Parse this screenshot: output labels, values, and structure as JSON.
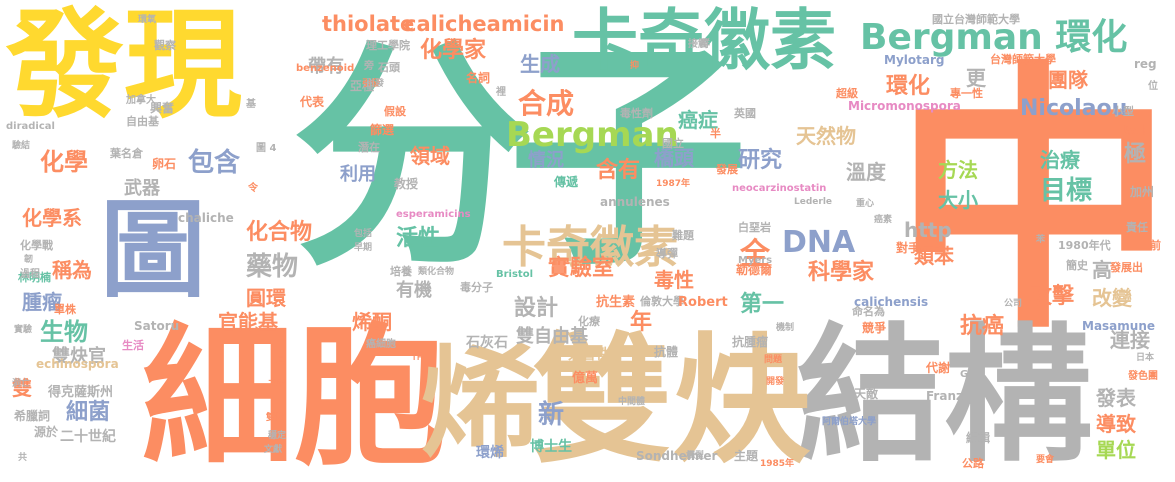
{
  "colors": {
    "teal": "#66c2a5",
    "orange": "#fc8d62",
    "blue": "#8da0cb",
    "pink": "#e78ac3",
    "green": "#a6d854",
    "yellow": "#ffd92f",
    "tan": "#e5c494",
    "gray": "#b3b3b3"
  },
  "words": [
    {
      "text": "分子",
      "color": "#66c2a5"
    },
    {
      "text": "中",
      "color": "#fc8d62"
    },
    {
      "text": "發現",
      "color": "#ffd92f"
    },
    {
      "text": "結構",
      "color": "#b3b3b3"
    },
    {
      "text": "細胞",
      "color": "#fc8d62"
    },
    {
      "text": "雙炔",
      "color": "#e5c494"
    },
    {
      "text": "烯",
      "color": "#e5c494"
    },
    {
      "text": "圖",
      "color": "#8da0cb"
    },
    {
      "text": "卡奇徽素",
      "color": "#66c2a5"
    },
    {
      "text": "卡奇徽素",
      "color": "#e5c494"
    },
    {
      "text": "Bergman 環化",
      "color": "#66c2a5"
    },
    {
      "text": "Bergman",
      "color": "#a6d854"
    },
    {
      "text": "thiolate",
      "color": "#fc8d62"
    },
    {
      "text": "calicheamicin",
      "color": "#fc8d62"
    },
    {
      "text": "化學家",
      "color": "#fc8d62"
    },
    {
      "text": "合成",
      "color": "#fc8d62"
    },
    {
      "text": "生成",
      "color": "#8da0cb"
    },
    {
      "text": "團隊",
      "color": "#fc8d62"
    },
    {
      "text": "環化",
      "color": "#fc8d62"
    },
    {
      "text": "更",
      "color": "#b3b3b3"
    },
    {
      "text": "Nicolaou",
      "color": "#8da0cb"
    },
    {
      "text": "天然物",
      "color": "#e5c494"
    },
    {
      "text": "癌症",
      "color": "#66c2a5"
    },
    {
      "text": "研究",
      "color": "#8da0cb"
    },
    {
      "text": "方法",
      "color": "#a6d854"
    },
    {
      "text": "治療",
      "color": "#66c2a5"
    },
    {
      "text": "目標",
      "color": "#66c2a5"
    },
    {
      "text": "大小",
      "color": "#66c2a5"
    },
    {
      "text": "溫度",
      "color": "#b3b3b3"
    },
    {
      "text": "極",
      "color": "#b3b3b3"
    },
    {
      "text": "DNA",
      "color": "#8da0cb"
    },
    {
      "text": "全",
      "color": "#fc8d62"
    },
    {
      "text": "科學家",
      "color": "#fc8d62"
    },
    {
      "text": "類苯",
      "color": "#fc8d62"
    },
    {
      "text": "攻擊",
      "color": "#fc8d62"
    },
    {
      "text": "改變",
      "color": "#e5c494"
    },
    {
      "text": "高",
      "color": "#b3b3b3"
    },
    {
      "text": "抗癌",
      "color": "#fc8d62"
    },
    {
      "text": "連接",
      "color": "#b3b3b3"
    },
    {
      "text": "發表",
      "color": "#b3b3b3"
    },
    {
      "text": "導致",
      "color": "#fc8d62"
    },
    {
      "text": "單位",
      "color": "#a6d854"
    },
    {
      "text": "http",
      "color": "#b3b3b3"
    },
    {
      "text": "第一",
      "color": "#66c2a5"
    },
    {
      "text": "實驗室",
      "color": "#fc8d62"
    },
    {
      "text": "毒性",
      "color": "#fc8d62"
    },
    {
      "text": "含有",
      "color": "#fc8d62"
    },
    {
      "text": "橋頭",
      "color": "#8da0cb"
    },
    {
      "text": "情況",
      "color": "#8da0cb"
    },
    {
      "text": "包含",
      "color": "#8da0cb"
    },
    {
      "text": "化學",
      "color": "#fc8d62"
    },
    {
      "text": "武器",
      "color": "#b3b3b3"
    },
    {
      "text": "化學系",
      "color": "#fc8d62"
    },
    {
      "text": "稱為",
      "color": "#fc8d62"
    },
    {
      "text": "腫瘤",
      "color": "#8da0cb"
    },
    {
      "text": "生物",
      "color": "#66c2a5"
    },
    {
      "text": "化合物",
      "color": "#fc8d62"
    },
    {
      "text": "藥物",
      "color": "#b3b3b3"
    },
    {
      "text": "圓環",
      "color": "#fc8d62"
    },
    {
      "text": "官能基",
      "color": "#fc8d62"
    },
    {
      "text": "活性",
      "color": "#66c2a5"
    },
    {
      "text": "有機",
      "color": "#b3b3b3"
    },
    {
      "text": "烯酮",
      "color": "#fc8d62"
    },
    {
      "text": "設計",
      "color": "#b3b3b3"
    },
    {
      "text": "雙自由基",
      "color": "#b3b3b3"
    },
    {
      "text": "新",
      "color": "#8da0cb"
    },
    {
      "text": "年",
      "color": "#fc8d62"
    },
    {
      "text": "帶有",
      "color": "#b3b3b3"
    },
    {
      "text": "領域",
      "color": "#fc8d62"
    },
    {
      "text": "利用",
      "color": "#8da0cb"
    },
    {
      "text": "雙炔官",
      "color": "#b3b3b3"
    },
    {
      "text": "雙",
      "color": "#fc8d62"
    },
    {
      "text": "細菌",
      "color": "#8da0cb"
    },
    {
      "text": "二十世紀",
      "color": "#b3b3b3"
    },
    {
      "text": "得克薩斯州",
      "color": "#b3b3b3"
    },
    {
      "text": "希臘詞",
      "color": "#b3b3b3"
    },
    {
      "text": "源於",
      "color": "#b3b3b3"
    },
    {
      "text": "博士生",
      "color": "#66c2a5"
    },
    {
      "text": "Sondheimer",
      "color": "#b3b3b3"
    },
    {
      "text": "主題",
      "color": "#b3b3b3"
    },
    {
      "text": "環烯",
      "color": "#8da0cb"
    },
    {
      "text": "石灰石",
      "color": "#b3b3b3"
    },
    {
      "text": "芳香性",
      "color": "#e5c494"
    },
    {
      "text": "億萬",
      "color": "#fc8d62"
    },
    {
      "text": "抗生素",
      "color": "#fc8d62"
    },
    {
      "text": "倫敦大學",
      "color": "#b3b3b3"
    },
    {
      "text": "Robert",
      "color": "#fc8d62"
    },
    {
      "text": "Micromonospora",
      "color": "#e78ac3"
    },
    {
      "text": "Mylotarg",
      "color": "#8da0cb"
    },
    {
      "text": "annulenes",
      "color": "#b3b3b3"
    },
    {
      "text": "chaliche",
      "color": "#b3b3b3"
    },
    {
      "text": "calichensis",
      "color": "#8da0cb"
    },
    {
      "text": "esperamicins",
      "color": "#e78ac3"
    },
    {
      "text": "neocarzinostatin",
      "color": "#e78ac3"
    },
    {
      "text": "echinospora",
      "color": "#e5c494"
    },
    {
      "text": "Satoru",
      "color": "#b3b3b3"
    },
    {
      "text": "Masamune",
      "color": "#8da0cb"
    },
    {
      "text": "Franz",
      "color": "#b3b3b3"
    },
    {
      "text": "國立台灣師範大學",
      "color": "#b3b3b3"
    },
    {
      "text": "台灣師範大學",
      "color": "#fc8d62"
    },
    {
      "text": "理工學院",
      "color": "#b3b3b3"
    },
    {
      "text": "林明楠",
      "color": "#66c2a5"
    },
    {
      "text": "自由基",
      "color": "#b3b3b3"
    },
    {
      "text": "毒性劑",
      "color": "#b3b3b3"
    },
    {
      "text": "英國",
      "color": "#b3b3b3"
    },
    {
      "text": "超級",
      "color": "#fc8d62"
    },
    {
      "text": "小型",
      "color": "#b3b3b3"
    },
    {
      "text": "吸引",
      "color": "#fc8d62"
    },
    {
      "text": "專一性",
      "color": "#fc8d62"
    },
    {
      "text": "1987年",
      "color": "#fc8d62"
    },
    {
      "text": "1980年代",
      "color": "#b3b3b3"
    },
    {
      "text": "1985年",
      "color": "#fc8d62"
    },
    {
      "text": "簡史",
      "color": "#b3b3b3"
    },
    {
      "text": "發展出",
      "color": "#fc8d62"
    },
    {
      "text": "勒德爾",
      "color": "#fc8d62"
    },
    {
      "text": "對手",
      "color": "#fc8d62"
    },
    {
      "text": "代謝",
      "color": "#fc8d62"
    },
    {
      "text": "天敵",
      "color": "#b3b3b3"
    },
    {
      "text": "競爭",
      "color": "#fc8d62"
    },
    {
      "text": "命名為",
      "color": "#b3b3b3"
    },
    {
      "text": "抗腫瘤",
      "color": "#b3b3b3"
    },
    {
      "text": "抗體",
      "color": "#b3b3b3"
    },
    {
      "text": "化療",
      "color": "#b3b3b3"
    },
    {
      "text": "導彈",
      "color": "#b3b3b3"
    },
    {
      "text": "難題",
      "color": "#b3b3b3"
    },
    {
      "text": "毒分子",
      "color": "#b3b3b3"
    },
    {
      "text": "培養",
      "color": "#b3b3b3"
    },
    {
      "text": "類化合物",
      "color": "#b3b3b3"
    },
    {
      "text": "Bristol",
      "color": "#66c2a5"
    },
    {
      "text": "Myers",
      "color": "#b3b3b3"
    },
    {
      "text": "Lederle",
      "color": "#b3b3b3"
    },
    {
      "text": "白堊岩",
      "color": "#b3b3b3"
    },
    {
      "text": "發展",
      "color": "#fc8d62"
    },
    {
      "text": "傳遞",
      "color": "#66c2a5"
    },
    {
      "text": "國立",
      "color": "#b3b3b3"
    },
    {
      "text": "教授",
      "color": "#b3b3b3"
    },
    {
      "text": "潛在",
      "color": "#b3b3b3"
    },
    {
      "text": "篩選",
      "color": "#fc8d62"
    },
    {
      "text": "假設",
      "color": "#fc8d62"
    },
    {
      "text": "亞種",
      "color": "#b3b3b3"
    },
    {
      "text": "石頭",
      "color": "#b3b3b3"
    },
    {
      "text": "代表",
      "color": "#fc8d62"
    },
    {
      "text": "興奮",
      "color": "#b3b3b3"
    },
    {
      "text": "名詞",
      "color": "#fc8d62"
    },
    {
      "text": "葉名倉",
      "color": "#b3b3b3"
    },
    {
      "text": "卵石",
      "color": "#fc8d62"
    },
    {
      "text": "加拿大",
      "color": "#b3b3b3"
    },
    {
      "text": "觀察",
      "color": "#b3b3b3"
    },
    {
      "text": "diradical",
      "color": "#b3b3b3"
    },
    {
      "text": "benzenoid",
      "color": "#fc8d62"
    },
    {
      "text": "化學戰",
      "color": "#b3b3b3"
    },
    {
      "text": "單株",
      "color": "#fc8d62"
    },
    {
      "text": "癌細胞",
      "color": "#b3b3b3"
    },
    {
      "text": "公路",
      "color": "#fc8d62"
    },
    {
      "text": "阿爾伯塔大學",
      "color": "#8da0cb"
    },
    {
      "text": "編輯",
      "color": "#b3b3b3"
    },
    {
      "text": "加州",
      "color": "#b3b3b3"
    },
    {
      "text": "責任",
      "color": "#b3b3b3"
    },
    {
      "text": "前",
      "color": "#fc8d62"
    },
    {
      "text": "reg",
      "color": "#b3b3b3"
    },
    {
      "text": "位",
      "color": "#b3b3b3"
    },
    {
      "text": "群",
      "color": "#b3b3b3"
    },
    {
      "text": "接觸",
      "color": "#b3b3b3"
    },
    {
      "text": "過程",
      "color": "#b3b3b3"
    },
    {
      "text": "實驗",
      "color": "#b3b3b3"
    },
    {
      "text": "生活",
      "color": "#e78ac3"
    },
    {
      "text": "洞亡",
      "color": "#b3b3b3"
    },
    {
      "text": "驗結",
      "color": "#b3b3b3"
    },
    {
      "text": "包括",
      "color": "#b3b3b3"
    },
    {
      "text": "早期",
      "color": "#b3b3b3"
    },
    {
      "text": "作",
      "color": "#fc8d62"
    },
    {
      "text": "機制",
      "color": "#b3b3b3"
    },
    {
      "text": "問題",
      "color": "#fc8d62"
    },
    {
      "text": "之中",
      "color": "#fc8d62"
    },
    {
      "text": "雙炔",
      "color": "#fc8d62"
    },
    {
      "text": "穩定",
      "color": "#b3b3b3"
    },
    {
      "text": "文獻",
      "color": "#b3b3b3"
    },
    {
      "text": "構型",
      "color": "#b3b3b3"
    },
    {
      "text": "半",
      "color": "#fc8d62"
    },
    {
      "text": "裡",
      "color": "#b3b3b3"
    },
    {
      "text": "抑",
      "color": "#fc8d62"
    },
    {
      "text": "令",
      "color": "#fc8d62"
    },
    {
      "text": "引發",
      "color": "#fc8d62"
    },
    {
      "text": "發色團",
      "color": "#fc8d62"
    },
    {
      "text": "日本",
      "color": "#b3b3b3"
    },
    {
      "text": "開發",
      "color": "#fc8d62"
    },
    {
      "text": "要會",
      "color": "#fc8d62"
    },
    {
      "text": "G",
      "color": "#b3b3b3"
    },
    {
      "text": "共",
      "color": "#b3b3b3"
    },
    {
      "text": "旁",
      "color": "#b3b3b3"
    },
    {
      "text": "引發",
      "color": "#b3b3b3"
    },
    {
      "text": "基",
      "color": "#b3b3b3"
    },
    {
      "text": "圖 4",
      "color": "#b3b3b3"
    },
    {
      "text": "環氧",
      "color": "#b3b3b3"
    },
    {
      "text": "具",
      "color": "#fc8d62"
    },
    {
      "text": "公司",
      "color": "#b3b3b3"
    },
    {
      "text": "中間體",
      "color": "#b3b3b3"
    },
    {
      "text": "重心",
      "color": "#b3b3b3"
    },
    {
      "text": "癌素",
      "color": "#b3b3b3"
    },
    {
      "text": "韌",
      "color": "#b3b3b3"
    },
    {
      "text": "苯",
      "color": "#b3b3b3"
    }
  ]
}
